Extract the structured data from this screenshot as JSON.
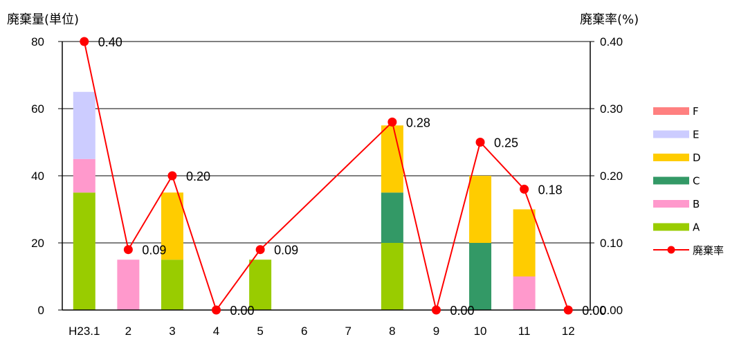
{
  "chart_data": {
    "type": "bar",
    "stacked": true,
    "y_left_label": "廃棄量(単位)",
    "y_right_label": "廃棄率(%)",
    "ylim": [
      0,
      80
    ],
    "ylim_right": [
      0,
      0.4
    ],
    "y_ticks": [
      0,
      20,
      40,
      60,
      80
    ],
    "y_tick_labels": [
      "0",
      "20",
      "40",
      "60",
      "80"
    ],
    "y_right_ticks": [
      0,
      0.1,
      0.2,
      0.3,
      0.4
    ],
    "y_right_tick_labels": [
      "0.00",
      "0.10",
      "0.20",
      "0.30",
      "0.40"
    ],
    "categories": [
      "H23.1",
      "2",
      "3",
      "4",
      "5",
      "6",
      "7",
      "8",
      "9",
      "10",
      "11",
      "12"
    ],
    "grid": true,
    "legend_position": "right",
    "series": [
      {
        "name": "A",
        "color": "#99cc00",
        "values": [
          35,
          0,
          15,
          0,
          15,
          0,
          0,
          20,
          0,
          0,
          0,
          0
        ]
      },
      {
        "name": "B",
        "color": "#ff99cc",
        "values": [
          10,
          15,
          0,
          0,
          0,
          0,
          0,
          0,
          0,
          0,
          10,
          0
        ]
      },
      {
        "name": "C",
        "color": "#339966",
        "values": [
          0,
          0,
          0,
          0,
          0,
          0,
          0,
          15,
          0,
          20,
          0,
          0
        ]
      },
      {
        "name": "D",
        "color": "#ffcc00",
        "values": [
          0,
          0,
          20,
          0,
          0,
          0,
          0,
          20,
          0,
          20,
          20,
          0
        ]
      },
      {
        "name": "E",
        "color": "#ccccff",
        "values": [
          20,
          0,
          0,
          0,
          0,
          0,
          0,
          0,
          0,
          0,
          0,
          0
        ]
      },
      {
        "name": "F",
        "color": "#ff8080",
        "values": [
          0,
          0,
          0,
          0,
          0,
          0,
          0,
          0,
          0,
          0,
          0,
          0
        ]
      }
    ],
    "line_series": {
      "name": "廃棄率",
      "color": "#ff0000",
      "axis": "right",
      "points": [
        {
          "category": "H23.1",
          "value": 0.4,
          "label": "0.40"
        },
        {
          "category": "2",
          "value": 0.09,
          "label": "0.09"
        },
        {
          "category": "3",
          "value": 0.2,
          "label": "0.20"
        },
        {
          "category": "4",
          "value": 0.0,
          "label": "0.00"
        },
        {
          "category": "5",
          "value": 0.09,
          "label": "0.09"
        },
        {
          "category": "8",
          "value": 0.28,
          "label": "0.28"
        },
        {
          "category": "9",
          "value": 0.0,
          "label": "0.00"
        },
        {
          "category": "10",
          "value": 0.25,
          "label": "0.25"
        },
        {
          "category": "11",
          "value": 0.18,
          "label": "0.18"
        },
        {
          "category": "12",
          "value": 0.0,
          "label": "0.00"
        }
      ]
    }
  }
}
